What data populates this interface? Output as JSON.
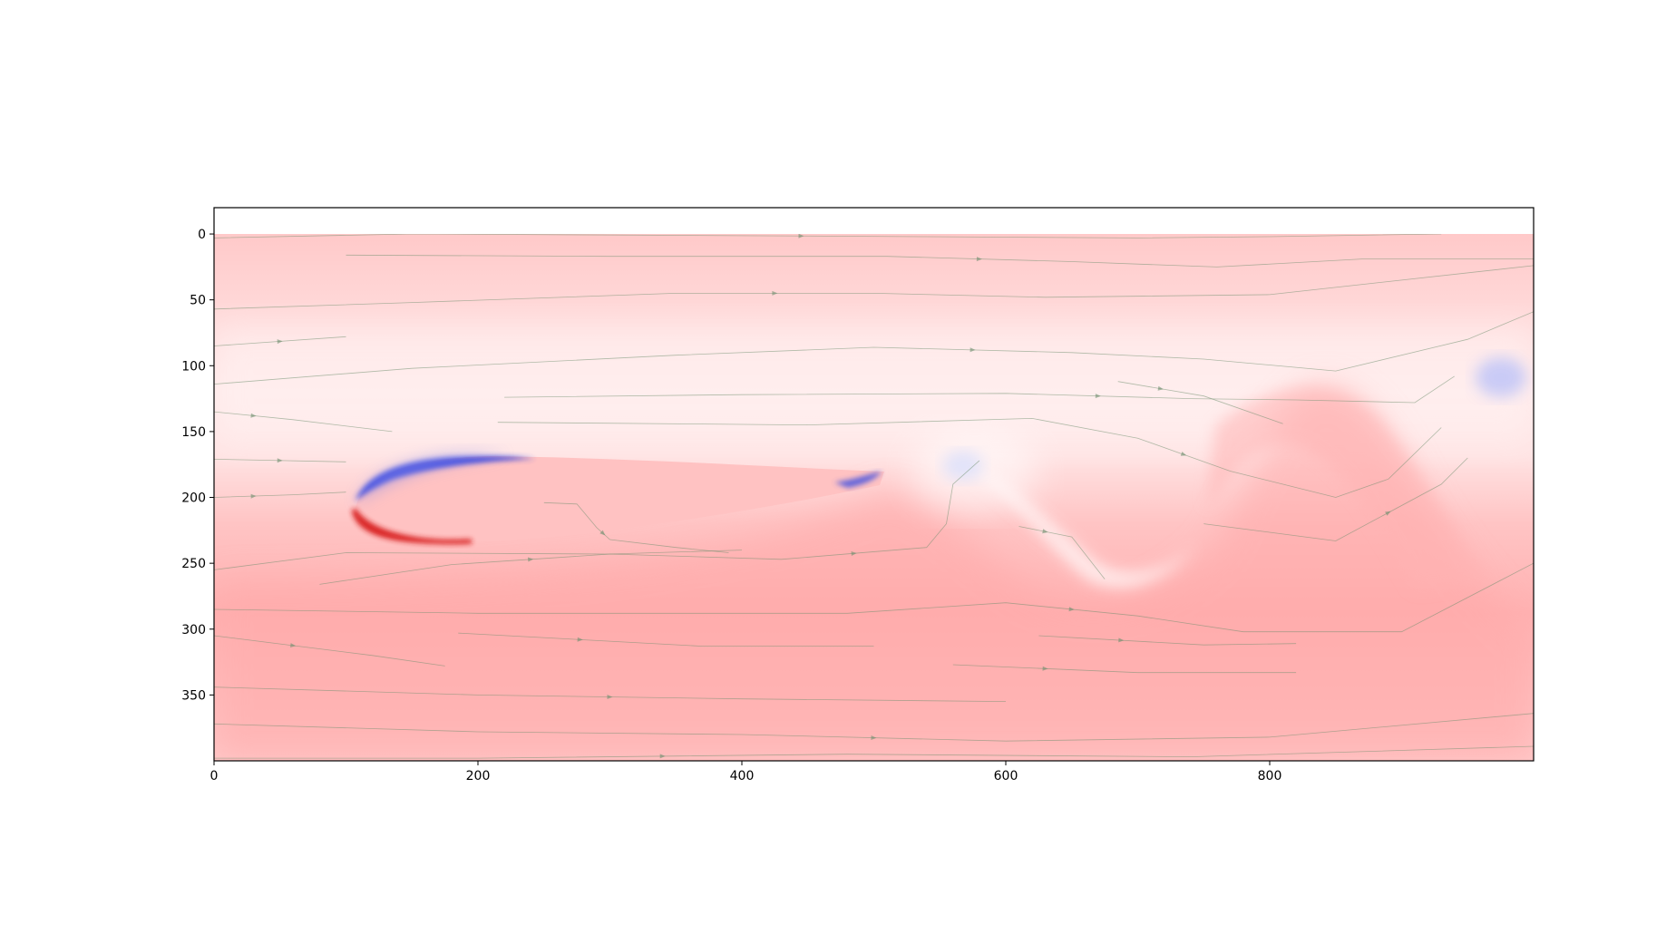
{
  "chart_data": {
    "type": "heatmap",
    "title": "",
    "xlabel": "",
    "ylabel": "",
    "xlim": [
      0,
      1000
    ],
    "ylim": [
      400,
      -20
    ],
    "x_ticks": [
      0,
      200,
      400,
      600,
      800
    ],
    "y_ticks": [
      0,
      50,
      100,
      150,
      200,
      250,
      300,
      350
    ],
    "grid": false,
    "legend": "none",
    "colormap": "bwr",
    "colors": {
      "background": "#ffffff",
      "axes_frame": "#000000",
      "streamline": "#6f8f6f",
      "positive": "#f03030",
      "negative": "#3040e0"
    },
    "features": [
      {
        "kind": "airfoil",
        "leading_edge": [
          105,
          205
        ],
        "trailing_edge": [
          505,
          180
        ],
        "upper_surface_y": 172,
        "lower_surface_y": 236
      },
      {
        "kind": "vortex",
        "x": 575,
        "y": 178,
        "sign": "negative"
      },
      {
        "kind": "vortex",
        "x": 975,
        "y": 106,
        "sign": "negative"
      },
      {
        "kind": "wake_crest",
        "x": 840,
        "y": 120,
        "sign": "positive"
      },
      {
        "kind": "wake_trough",
        "x": 700,
        "y": 265,
        "sign": "positive"
      }
    ],
    "streamlines": [
      [
        [
          0,
          3
        ],
        [
          150,
          0
        ],
        [
          350,
          1
        ],
        [
          540,
          2
        ],
        [
          700,
          3
        ],
        [
          800,
          2
        ],
        [
          930,
          0
        ]
      ],
      [
        [
          100,
          16
        ],
        [
          300,
          17
        ],
        [
          510,
          17
        ],
        [
          650,
          21
        ],
        [
          760,
          25
        ],
        [
          870,
          19
        ],
        [
          1000,
          19
        ]
      ],
      [
        [
          0,
          57
        ],
        [
          150,
          52
        ],
        [
          350,
          45
        ],
        [
          500,
          45
        ],
        [
          630,
          48
        ],
        [
          800,
          46
        ],
        [
          1000,
          24
        ]
      ],
      [
        [
          0,
          85
        ],
        [
          100,
          78
        ]
      ],
      [
        [
          0,
          114
        ],
        [
          150,
          102
        ],
        [
          350,
          92
        ],
        [
          500,
          86
        ],
        [
          650,
          90
        ],
        [
          750,
          95
        ],
        [
          850,
          104
        ],
        [
          950,
          80
        ],
        [
          1000,
          59
        ]
      ],
      [
        [
          220,
          124
        ],
        [
          400,
          122
        ],
        [
          600,
          121
        ],
        [
          740,
          125
        ],
        [
          820,
          126
        ],
        [
          910,
          128
        ],
        [
          940,
          108
        ]
      ],
      [
        [
          685,
          112
        ],
        [
          750,
          123
        ],
        [
          810,
          144
        ]
      ],
      [
        [
          0,
          135
        ],
        [
          60,
          141
        ],
        [
          135,
          150
        ]
      ],
      [
        [
          215,
          143
        ],
        [
          450,
          145
        ],
        [
          620,
          140
        ],
        [
          700,
          155
        ],
        [
          770,
          180
        ],
        [
          850,
          200
        ],
        [
          890,
          186
        ],
        [
          930,
          147
        ]
      ],
      [
        [
          0,
          171
        ],
        [
          100,
          173
        ]
      ],
      [
        [
          0,
          200
        ],
        [
          60,
          198
        ],
        [
          100,
          196
        ]
      ],
      [
        [
          250,
          204
        ],
        [
          275,
          205
        ],
        [
          290,
          223
        ],
        [
          300,
          232
        ],
        [
          350,
          238
        ],
        [
          390,
          242
        ]
      ],
      [
        [
          0,
          255
        ],
        [
          100,
          242
        ],
        [
          300,
          243
        ],
        [
          430,
          247
        ],
        [
          540,
          238
        ],
        [
          555,
          220
        ],
        [
          560,
          190
        ],
        [
          580,
          172
        ]
      ],
      [
        [
          80,
          266
        ],
        [
          180,
          251
        ],
        [
          300,
          243
        ],
        [
          400,
          240
        ]
      ],
      [
        [
          610,
          222
        ],
        [
          650,
          230
        ],
        [
          675,
          262
        ]
      ],
      [
        [
          750,
          220
        ],
        [
          850,
          233
        ],
        [
          930,
          190
        ],
        [
          950,
          170
        ]
      ],
      [
        [
          0,
          285
        ],
        [
          200,
          288
        ],
        [
          480,
          288
        ],
        [
          600,
          280
        ],
        [
          700,
          290
        ],
        [
          780,
          302
        ],
        [
          900,
          302
        ],
        [
          1000,
          250
        ]
      ],
      [
        [
          0,
          305
        ],
        [
          120,
          320
        ],
        [
          175,
          328
        ]
      ],
      [
        [
          185,
          303
        ],
        [
          370,
          313
        ],
        [
          500,
          313
        ]
      ],
      [
        [
          625,
          305
        ],
        [
          750,
          312
        ],
        [
          820,
          311
        ]
      ],
      [
        [
          560,
          327
        ],
        [
          700,
          333
        ],
        [
          820,
          333
        ]
      ],
      [
        [
          0,
          344
        ],
        [
          200,
          350
        ],
        [
          400,
          353
        ],
        [
          600,
          355
        ]
      ],
      [
        [
          0,
          372
        ],
        [
          200,
          378
        ],
        [
          400,
          380
        ],
        [
          600,
          385
        ],
        [
          800,
          382
        ],
        [
          1000,
          364
        ]
      ],
      [
        [
          0,
          398
        ],
        [
          200,
          398
        ],
        [
          480,
          395
        ],
        [
          740,
          397
        ],
        [
          1000,
          389
        ]
      ]
    ]
  }
}
